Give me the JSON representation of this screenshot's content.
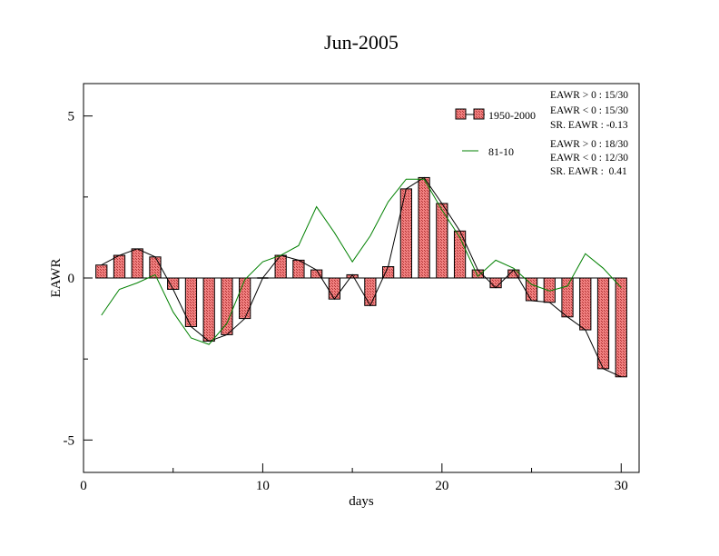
{
  "chart_data": {
    "type": "bar",
    "title": "Jun-2005",
    "xlabel": "days",
    "ylabel": "EAWR",
    "xlim": [
      0,
      31
    ],
    "ylim": [
      -6,
      6
    ],
    "xticks": [
      0,
      10,
      20,
      30
    ],
    "yticks": [
      -5,
      0,
      5
    ],
    "x": [
      1,
      2,
      3,
      4,
      5,
      6,
      7,
      8,
      9,
      10,
      11,
      12,
      13,
      14,
      15,
      16,
      17,
      18,
      19,
      20,
      21,
      22,
      23,
      24,
      25,
      26,
      27,
      28,
      29,
      30
    ],
    "series": [
      {
        "name": "1950-2000",
        "kind": "bar",
        "color": "#f08080",
        "values": [
          0.4,
          0.7,
          0.9,
          0.65,
          -0.35,
          -1.5,
          -1.95,
          -1.75,
          -1.25,
          0.0,
          0.7,
          0.55,
          0.25,
          -0.65,
          0.1,
          -0.85,
          0.35,
          2.75,
          3.1,
          2.3,
          1.45,
          0.25,
          -0.3,
          0.25,
          -0.7,
          -0.75,
          -1.2,
          -1.6,
          -2.8,
          -3.05
        ]
      },
      {
        "name": "81-10",
        "kind": "line",
        "color": "#008000",
        "values": [
          -1.15,
          -0.35,
          -0.15,
          0.1,
          -1.05,
          -1.85,
          -2.05,
          -1.4,
          -0.05,
          0.5,
          0.7,
          1.0,
          2.2,
          1.4,
          0.5,
          1.3,
          2.35,
          3.05,
          3.05,
          2.1,
          1.25,
          0.05,
          0.55,
          0.3,
          -0.2,
          -0.4,
          -0.25,
          0.75,
          0.3,
          -0.3
        ]
      }
    ],
    "legend_position": "top-right",
    "stats": [
      [
        "EAWR > 0 : 15/30",
        "EAWR < 0 : 15/30",
        "SR. EAWR : -0.13"
      ],
      [
        "EAWR > 0 : 18/30",
        "EAWR < 0 : 12/30",
        "SR. EAWR :  0.41"
      ]
    ]
  }
}
